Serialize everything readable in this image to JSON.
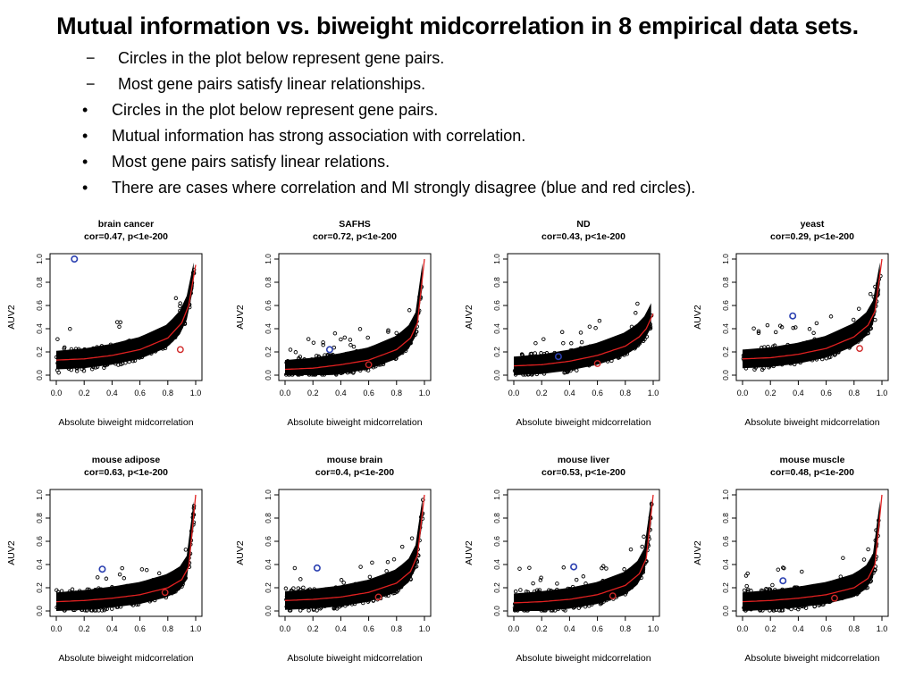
{
  "title": "Mutual information vs. biweight midcorrelation in 8 empirical data sets.",
  "bullets": [
    {
      "marker": "−",
      "text": "Circles in the plot below represent gene pairs."
    },
    {
      "marker": "−",
      "text": "Most gene pairs satisfy linear relationships."
    },
    {
      "marker": "•",
      "text": "Circles in the plot below represent gene pairs."
    },
    {
      "marker": "•",
      "text": "Mutual information has strong association with correlation."
    },
    {
      "marker": "•",
      "text": "Most gene pairs satisfy linear relations."
    },
    {
      "marker": "•",
      "text": "There are cases where correlation and MI strongly disagree (blue and red circles)."
    }
  ],
  "colors": {
    "points": "#000000",
    "fit": "#e02020",
    "highlight_blue": "#2a3fb0",
    "highlight_red": "#d02828"
  },
  "chart_data": [
    {
      "type": "scatter",
      "title": "brain cancer",
      "subtitle": "cor=0.47, p<1e-200",
      "xlabel": "Absolute biweight midcorrelation",
      "ylabel": "AUV2",
      "xlim": [
        0,
        1
      ],
      "ylim": [
        0,
        1
      ],
      "xticks": [
        "0.0",
        "0.2",
        "0.4",
        "0.6",
        "0.8",
        "1.0"
      ],
      "yticks": [
        "0.0",
        "0.2",
        "0.4",
        "0.6",
        "0.8",
        "1.0"
      ],
      "fit_curve": [
        [
          0.0,
          0.13
        ],
        [
          0.2,
          0.14
        ],
        [
          0.4,
          0.17
        ],
        [
          0.6,
          0.22
        ],
        [
          0.8,
          0.32
        ],
        [
          0.9,
          0.45
        ],
        [
          0.95,
          0.6
        ],
        [
          1.0,
          0.95
        ]
      ],
      "blue_point": [
        0.13,
        1.0
      ],
      "red_point": [
        0.89,
        0.22
      ]
    },
    {
      "type": "scatter",
      "title": "SAFHS",
      "subtitle": "cor=0.72, p<1e-200",
      "xlabel": "Absolute biweight midcorrelation",
      "ylabel": "AUV2",
      "xlim": [
        0,
        1
      ],
      "ylim": [
        0,
        1
      ],
      "xticks": [
        "0.0",
        "0.2",
        "0.4",
        "0.6",
        "0.8",
        "1.0"
      ],
      "yticks": [
        "0.0",
        "0.2",
        "0.4",
        "0.6",
        "0.8",
        "1.0"
      ],
      "fit_curve": [
        [
          0.0,
          0.05
        ],
        [
          0.2,
          0.06
        ],
        [
          0.4,
          0.09
        ],
        [
          0.6,
          0.13
        ],
        [
          0.8,
          0.22
        ],
        [
          0.9,
          0.32
        ],
        [
          0.95,
          0.45
        ],
        [
          1.0,
          1.0
        ]
      ],
      "blue_point": [
        0.32,
        0.22
      ],
      "red_point": [
        0.6,
        0.09
      ]
    },
    {
      "type": "scatter",
      "title": "ND",
      "subtitle": "cor=0.43, p<1e-200",
      "xlabel": "Absolute biweight midcorrelation",
      "ylabel": "AUV2",
      "xlim": [
        0,
        1
      ],
      "ylim": [
        0,
        1
      ],
      "xticks": [
        "0.0",
        "0.2",
        "0.4",
        "0.6",
        "0.8",
        "1.0"
      ],
      "yticks": [
        "0.0",
        "0.2",
        "0.4",
        "0.6",
        "0.8",
        "1.0"
      ],
      "fit_curve": [
        [
          0.0,
          0.08
        ],
        [
          0.2,
          0.09
        ],
        [
          0.4,
          0.12
        ],
        [
          0.6,
          0.17
        ],
        [
          0.8,
          0.25
        ],
        [
          0.9,
          0.33
        ],
        [
          0.95,
          0.4
        ],
        [
          1.0,
          0.53
        ]
      ],
      "blue_point": [
        0.32,
        0.16
      ],
      "red_point": [
        0.6,
        0.1
      ]
    },
    {
      "type": "scatter",
      "title": "yeast",
      "subtitle": "cor=0.29, p<1e-200",
      "xlabel": "Absolute biweight midcorrelation",
      "ylabel": "AUV2",
      "xlim": [
        0,
        1
      ],
      "ylim": [
        0,
        1
      ],
      "xticks": [
        "0.0",
        "0.2",
        "0.4",
        "0.6",
        "0.8",
        "1.0"
      ],
      "yticks": [
        "0.0",
        "0.2",
        "0.4",
        "0.6",
        "0.8",
        "1.0"
      ],
      "fit_curve": [
        [
          0.0,
          0.14
        ],
        [
          0.2,
          0.15
        ],
        [
          0.4,
          0.18
        ],
        [
          0.6,
          0.23
        ],
        [
          0.8,
          0.33
        ],
        [
          0.9,
          0.43
        ],
        [
          0.95,
          0.55
        ],
        [
          1.0,
          1.0
        ]
      ],
      "blue_point": [
        0.36,
        0.51
      ],
      "red_point": [
        0.84,
        0.23
      ]
    },
    {
      "type": "scatter",
      "title": "mouse adipose",
      "subtitle": "cor=0.63, p<1e-200",
      "xlabel": "Absolute biweight midcorrelation",
      "ylabel": "AUV2",
      "xlim": [
        0,
        1
      ],
      "ylim": [
        0,
        1
      ],
      "xticks": [
        "0.0",
        "0.2",
        "0.4",
        "0.6",
        "0.8",
        "1.0"
      ],
      "yticks": [
        "0.0",
        "0.2",
        "0.4",
        "0.6",
        "0.8",
        "1.0"
      ],
      "fit_curve": [
        [
          0.0,
          0.08
        ],
        [
          0.2,
          0.09
        ],
        [
          0.4,
          0.11
        ],
        [
          0.6,
          0.14
        ],
        [
          0.8,
          0.2
        ],
        [
          0.9,
          0.27
        ],
        [
          0.95,
          0.38
        ],
        [
          1.0,
          1.0
        ]
      ],
      "blue_point": [
        0.33,
        0.36
      ],
      "red_point": [
        0.78,
        0.16
      ]
    },
    {
      "type": "scatter",
      "title": "mouse brain",
      "subtitle": "cor=0.4, p<1e-200",
      "xlabel": "Absolute biweight midcorrelation",
      "ylabel": "AUV2",
      "xlim": [
        0,
        1
      ],
      "ylim": [
        0,
        1
      ],
      "xticks": [
        "0.0",
        "0.2",
        "0.4",
        "0.6",
        "0.8",
        "1.0"
      ],
      "yticks": [
        "0.0",
        "0.2",
        "0.4",
        "0.6",
        "0.8",
        "1.0"
      ],
      "fit_curve": [
        [
          0.0,
          0.09
        ],
        [
          0.2,
          0.1
        ],
        [
          0.4,
          0.12
        ],
        [
          0.6,
          0.16
        ],
        [
          0.8,
          0.24
        ],
        [
          0.9,
          0.34
        ],
        [
          0.95,
          0.48
        ],
        [
          1.0,
          1.0
        ]
      ],
      "blue_point": [
        0.23,
        0.37
      ],
      "red_point": [
        0.67,
        0.12
      ]
    },
    {
      "type": "scatter",
      "title": "mouse liver",
      "subtitle": "cor=0.53, p<1e-200",
      "xlabel": "Absolute biweight midcorrelation",
      "ylabel": "AUV2",
      "xlim": [
        0,
        1
      ],
      "ylim": [
        0,
        1
      ],
      "xticks": [
        "0.0",
        "0.2",
        "0.4",
        "0.6",
        "0.8",
        "1.0"
      ],
      "yticks": [
        "0.0",
        "0.2",
        "0.4",
        "0.6",
        "0.8",
        "1.0"
      ],
      "fit_curve": [
        [
          0.0,
          0.07
        ],
        [
          0.2,
          0.08
        ],
        [
          0.4,
          0.1
        ],
        [
          0.6,
          0.14
        ],
        [
          0.8,
          0.22
        ],
        [
          0.9,
          0.32
        ],
        [
          0.95,
          0.45
        ],
        [
          1.0,
          1.0
        ]
      ],
      "blue_point": [
        0.43,
        0.38
      ],
      "red_point": [
        0.71,
        0.13
      ]
    },
    {
      "type": "scatter",
      "title": "mouse muscle",
      "subtitle": "cor=0.48, p<1e-200",
      "xlabel": "Absolute biweight midcorrelation",
      "ylabel": "AUV2",
      "xlim": [
        0,
        1
      ],
      "ylim": [
        0,
        1
      ],
      "xticks": [
        "0.0",
        "0.2",
        "0.4",
        "0.6",
        "0.8",
        "1.0"
      ],
      "yticks": [
        "0.0",
        "0.2",
        "0.4",
        "0.6",
        "0.8",
        "1.0"
      ],
      "fit_curve": [
        [
          0.0,
          0.08
        ],
        [
          0.2,
          0.09
        ],
        [
          0.4,
          0.11
        ],
        [
          0.6,
          0.14
        ],
        [
          0.8,
          0.2
        ],
        [
          0.9,
          0.28
        ],
        [
          0.95,
          0.4
        ],
        [
          1.0,
          1.0
        ]
      ],
      "blue_point": [
        0.29,
        0.26
      ],
      "red_point": [
        0.66,
        0.11
      ]
    }
  ]
}
